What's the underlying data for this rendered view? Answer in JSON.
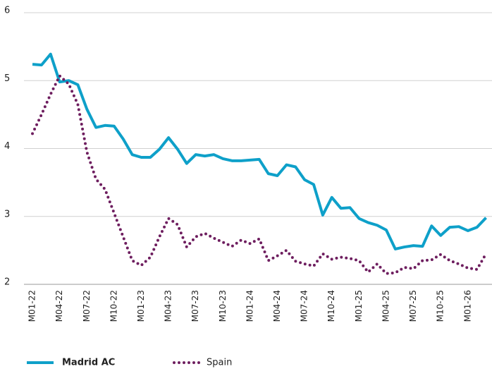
{
  "chart_data": {
    "type": "line",
    "categories": [
      "M01-22",
      null,
      null,
      "M04-22",
      null,
      null,
      "M07-22",
      null,
      null,
      "M10-22",
      null,
      null,
      "M01-23",
      null,
      null,
      "M04-23",
      null,
      null,
      "M07-23",
      null,
      null,
      "M10-23",
      null,
      null,
      "M01-24",
      null,
      null,
      "M04-24",
      null,
      null,
      "M07-24",
      null,
      null,
      "M10-24",
      null,
      null,
      "M01-25",
      null,
      null,
      "M04-25",
      null,
      null,
      "M07-25",
      null,
      null,
      "M10-25",
      null,
      null,
      "M01-26",
      null,
      null
    ],
    "series": [
      {
        "name": "Madrid AC",
        "color": "#0ea0c9",
        "style": "solid",
        "values": [
          5.24,
          5.23,
          5.39,
          4.98,
          5.0,
          4.94,
          4.58,
          4.31,
          4.34,
          4.33,
          4.14,
          3.91,
          3.87,
          3.87,
          3.99,
          4.16,
          3.99,
          3.78,
          3.91,
          3.89,
          3.91,
          3.85,
          3.82,
          3.82,
          3.83,
          3.84,
          3.63,
          3.6,
          3.76,
          3.73,
          3.54,
          3.47,
          3.02,
          3.28,
          3.12,
          3.13,
          2.97,
          2.91,
          2.87,
          2.8,
          2.52,
          2.55,
          2.57,
          2.56,
          2.86,
          2.72,
          2.84,
          2.85,
          2.79,
          2.84,
          2.98
        ]
      },
      {
        "name": "Spain",
        "color": "#6e1e5f",
        "style": "dotted",
        "values": [
          4.22,
          4.5,
          4.8,
          5.07,
          4.95,
          4.65,
          3.95,
          3.55,
          3.4,
          3.05,
          2.7,
          2.35,
          2.28,
          2.4,
          2.7,
          2.97,
          2.88,
          2.55,
          2.7,
          2.75,
          2.68,
          2.62,
          2.56,
          2.65,
          2.6,
          2.67,
          2.35,
          2.42,
          2.5,
          2.34,
          2.3,
          2.27,
          2.45,
          2.37,
          2.4,
          2.38,
          2.35,
          2.18,
          2.3,
          2.16,
          2.17,
          2.25,
          2.23,
          2.35,
          2.36,
          2.44,
          2.35,
          2.3,
          2.24,
          2.22,
          2.45
        ]
      }
    ],
    "ylim": [
      2,
      6
    ],
    "yticks": [
      2,
      3,
      4,
      5,
      6
    ],
    "grid": true
  }
}
